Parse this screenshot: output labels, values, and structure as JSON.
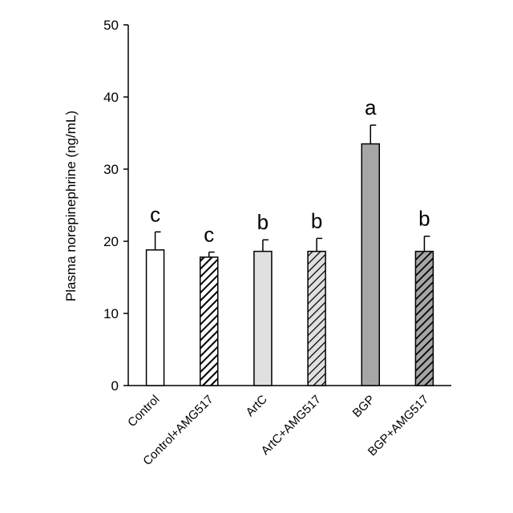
{
  "chart_data": {
    "type": "bar",
    "title": "",
    "xlabel": "",
    "ylabel": "Plasma norepinephrine (ng/mL)",
    "ylim": [
      0,
      50
    ],
    "yticks": [
      0,
      10,
      20,
      30,
      40,
      50
    ],
    "grid": false,
    "legend": "none",
    "categories": [
      "Control",
      "Control+AMG517",
      "ArtC",
      "ArtC+AMG517",
      "BGP",
      "BGP+AMG517"
    ],
    "values": [
      18.8,
      17.8,
      18.6,
      18.6,
      33.5,
      18.6
    ],
    "errors": [
      2.5,
      0.7,
      1.6,
      1.8,
      2.6,
      2.1
    ],
    "significance_labels": [
      "c",
      "c",
      "b",
      "b",
      "a",
      "b"
    ],
    "fills": [
      "#ffffff",
      "hatch",
      "#e0e0e0",
      "hatch-light",
      "#a6a6a6",
      "hatch-dark"
    ]
  }
}
